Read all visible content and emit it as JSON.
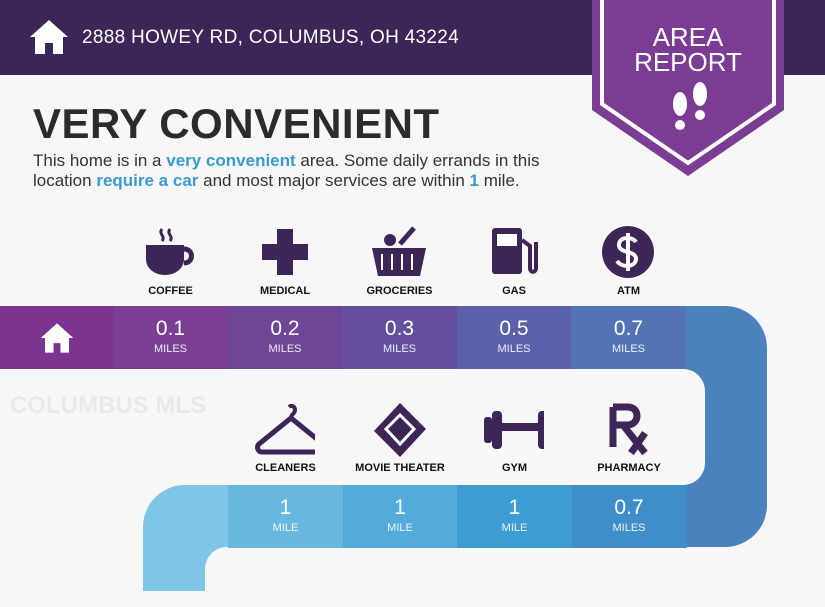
{
  "header": {
    "address": "2888 HOWEY RD, COLUMBUS, OH 43224",
    "icon": "home-icon"
  },
  "badge": {
    "line1": "AREA",
    "line2": "REPORT",
    "icon": "footprints-icon",
    "color": "#7b3c93"
  },
  "rating": "VERY CONVENIENT",
  "description": {
    "p1": "This home is in a ",
    "b1": "very convenient",
    "p2": " area. Some daily errands in this location ",
    "b2": "require a car",
    "p3": " and most major services are within ",
    "b3": "1",
    "p4": " mile."
  },
  "watermark": "COLUMBUS MLS",
  "row1": [
    {
      "label": "COFFEE",
      "icon": "coffee-icon",
      "value": "0.1",
      "unit": "MILES",
      "color": "#7a3f95"
    },
    {
      "label": "MEDICAL",
      "icon": "medical-cross-icon",
      "value": "0.2",
      "unit": "MILES",
      "color": "#6f4598"
    },
    {
      "label": "GROCERIES",
      "icon": "grocery-basket-icon",
      "value": "0.3",
      "unit": "MILES",
      "color": "#654f9f"
    },
    {
      "label": "GAS",
      "icon": "gas-pump-icon",
      "value": "0.5",
      "unit": "MILES",
      "color": "#5b61a9"
    },
    {
      "label": "ATM",
      "icon": "dollar-icon",
      "value": "0.7",
      "unit": "MILES",
      "color": "#5274b4"
    }
  ],
  "row2": [
    {
      "label": "CLEANERS",
      "icon": "hanger-icon",
      "value": "1",
      "unit": "MILE",
      "color": "#67b7df"
    },
    {
      "label": "MOVIE THEATER",
      "icon": "ticket-icon",
      "value": "1",
      "unit": "MILE",
      "color": "#52abd9"
    },
    {
      "label": "GYM",
      "icon": "dumbbell-icon",
      "value": "1",
      "unit": "MILE",
      "color": "#3d9dd2"
    },
    {
      "label": "PHARMACY",
      "icon": "rx-icon",
      "value": "0.7",
      "unit": "MILES",
      "color": "#3f8ec9"
    }
  ]
}
